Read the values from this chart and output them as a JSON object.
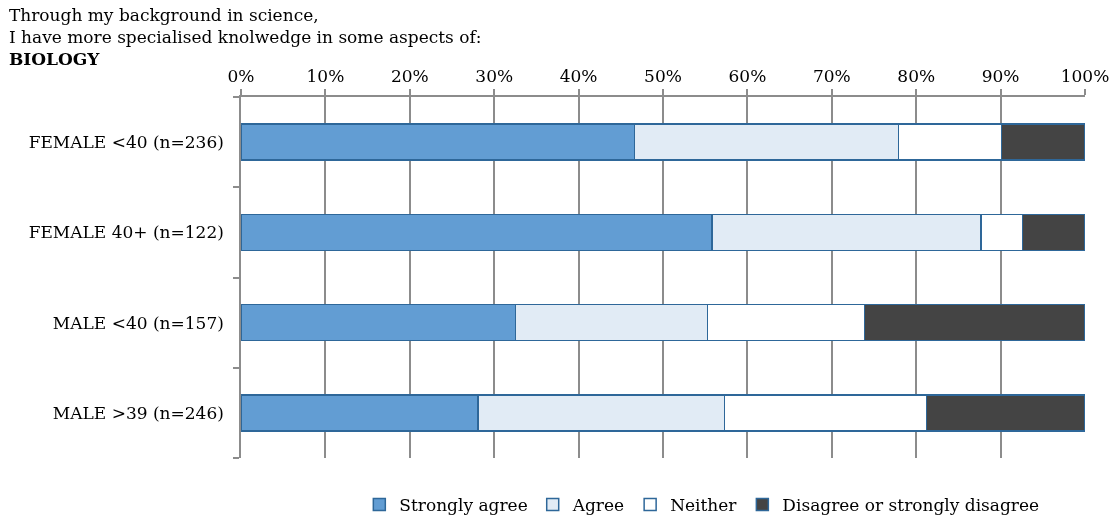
{
  "chart_data": {
    "type": "bar",
    "orientation": "horizontal",
    "stacked": true,
    "title": "Through my background in science,\nI have more specialised knolwedge in some aspects of:",
    "subtitle": "BIOLOGY",
    "categories": [
      "FEMALE <40 (n=236)",
      "FEMALE 40+ (n=122)",
      "MALE <40 (n=157)",
      "MALE >39 (n=246)"
    ],
    "series": [
      {
        "name": "Strongly agree",
        "color": "#629dd3",
        "values": [
          46.6,
          55.8,
          32.5,
          28.1
        ]
      },
      {
        "name": "Agree",
        "color": "#e1ebf5",
        "values": [
          31.3,
          31.9,
          22.8,
          29.2
        ]
      },
      {
        "name": "Neither",
        "color": "#ffffff",
        "values": [
          12.2,
          4.9,
          18.6,
          23.9
        ]
      },
      {
        "name": "Disagree or strongly disagree",
        "color": "#444444",
        "values": [
          9.9,
          7.4,
          26.1,
          18.8
        ]
      }
    ],
    "xlim": [
      0,
      100
    ],
    "xticks": [
      {
        "value": 0,
        "label": "0%"
      },
      {
        "value": 10,
        "label": "10%"
      },
      {
        "value": 20,
        "label": "20%"
      },
      {
        "value": 30,
        "label": "30%"
      },
      {
        "value": 40,
        "label": "40%"
      },
      {
        "value": 50,
        "label": "50%"
      },
      {
        "value": 60,
        "label": "60%"
      },
      {
        "value": 70,
        "label": "70%"
      },
      {
        "value": 80,
        "label": "80%"
      },
      {
        "value": 90,
        "label": "90%"
      },
      {
        "value": 100,
        "label": "100%"
      }
    ],
    "grid": "x",
    "legend": "bottom"
  }
}
